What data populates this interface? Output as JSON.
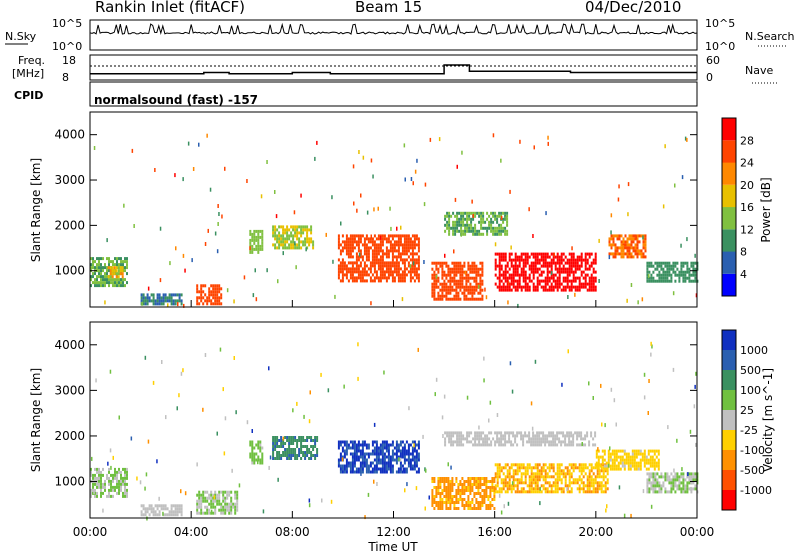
{
  "header": {
    "station": "Rankin Inlet (fitACF)",
    "beam": "Beam 15",
    "date": "04/Dec/2010"
  },
  "noise_panel": {
    "left_label": "N.Sky",
    "right_label": "N.Search",
    "left_ticks": [
      "10^5",
      "10^0"
    ],
    "right_ticks": [
      "10^5",
      "10^0"
    ]
  },
  "freq_panel": {
    "left_label_line1": "Freq.",
    "left_label_line2": "[MHz]",
    "left_ticks": [
      "18",
      "8"
    ],
    "right_label": "Nave",
    "right_ticks": [
      "60",
      "0"
    ]
  },
  "cpid_panel": {
    "label": "CPID",
    "text": "normalsound (fast) -157"
  },
  "x_axis": {
    "label": "Time UT",
    "ticks": [
      "00:00",
      "04:00",
      "08:00",
      "12:00",
      "16:00",
      "20:00",
      "00:00"
    ]
  },
  "y_axis": {
    "label": "Slant Range [km]",
    "ticks": [
      "1000",
      "2000",
      "3000",
      "4000"
    ]
  },
  "power_scale": {
    "label": "Power [dB]",
    "ticks": [
      "4",
      "8",
      "12",
      "16",
      "20",
      "24",
      "28"
    ],
    "colors": [
      "#0000ff",
      "#2a5fb0",
      "#3a9060",
      "#80c040",
      "#e8c000",
      "#ff8800",
      "#ff4400",
      "#ff0000"
    ]
  },
  "velocity_scale": {
    "label": "Velocity [m s^-1]",
    "ticks": [
      "1000",
      "500",
      "100",
      "25",
      "-25",
      "-100",
      "-500",
      "-1000"
    ],
    "colors": [
      "#1030c0",
      "#2a5fb0",
      "#3a9060",
      "#70c040",
      "#c0c0c0",
      "#ffd000",
      "#ff9000",
      "#ff5000",
      "#ff0000"
    ]
  },
  "chart_data": [
    {
      "type": "heatmap",
      "title": "Power",
      "xlabel": "Time UT",
      "ylabel": "Slant Range [km]",
      "xlim": [
        0,
        24
      ],
      "ylim": [
        200,
        4500
      ],
      "colorbar": {
        "label": "Power [dB]",
        "range": [
          0,
          32
        ]
      },
      "regions": [
        {
          "t": [
            0.0,
            1.5
          ],
          "r": [
            700,
            1300
          ],
          "v": 12
        },
        {
          "t": [
            0.7,
            1.3
          ],
          "r": [
            850,
            1100
          ],
          "v": 20
        },
        {
          "t": [
            2.0,
            3.6
          ],
          "r": [
            250,
            500
          ],
          "v": 8
        },
        {
          "t": [
            4.2,
            5.2
          ],
          "r": [
            300,
            700
          ],
          "v": 26
        },
        {
          "t": [
            6.3,
            6.8
          ],
          "r": [
            1400,
            1900
          ],
          "v": 14
        },
        {
          "t": [
            7.2,
            8.8
          ],
          "r": [
            1500,
            2000
          ],
          "v": 16
        },
        {
          "t": [
            9.8,
            13.0
          ],
          "r": [
            800,
            1800
          ],
          "v": 26
        },
        {
          "t": [
            13.5,
            15.5
          ],
          "r": [
            400,
            1200
          ],
          "v": 26
        },
        {
          "t": [
            14.0,
            16.5
          ],
          "r": [
            1800,
            2300
          ],
          "v": 12
        },
        {
          "t": [
            16.0,
            20.0
          ],
          "r": [
            600,
            1400
          ],
          "v": 30
        },
        {
          "t": [
            20.5,
            22.0
          ],
          "r": [
            1300,
            1800
          ],
          "v": 24
        },
        {
          "t": [
            22.0,
            24.0
          ],
          "r": [
            800,
            1200
          ],
          "v": 10
        }
      ]
    },
    {
      "type": "heatmap",
      "title": "Velocity",
      "xlabel": "Time UT",
      "ylabel": "Slant Range [km]",
      "xlim": [
        0,
        24
      ],
      "ylim": [
        200,
        4500
      ],
      "colorbar": {
        "label": "Velocity [m s^-1]",
        "range": [
          -1000,
          1000
        ]
      },
      "regions": [
        {
          "t": [
            0.0,
            1.5
          ],
          "r": [
            700,
            1300
          ],
          "v": 100
        },
        {
          "t": [
            2.0,
            3.6
          ],
          "r": [
            250,
            500
          ],
          "v": 0
        },
        {
          "t": [
            4.2,
            5.8
          ],
          "r": [
            300,
            800
          ],
          "v": 100
        },
        {
          "t": [
            6.3,
            6.8
          ],
          "r": [
            1400,
            1900
          ],
          "v": 200
        },
        {
          "t": [
            7.2,
            9.0
          ],
          "r": [
            1500,
            2000
          ],
          "v": 500
        },
        {
          "t": [
            9.8,
            13.0
          ],
          "r": [
            1200,
            1900
          ],
          "v": 800
        },
        {
          "t": [
            13.5,
            16.0
          ],
          "r": [
            400,
            1100
          ],
          "v": -400
        },
        {
          "t": [
            14.0,
            20.0
          ],
          "r": [
            1800,
            2100
          ],
          "v": 0
        },
        {
          "t": [
            16.0,
            20.5
          ],
          "r": [
            800,
            1400
          ],
          "v": -300
        },
        {
          "t": [
            20.0,
            22.5
          ],
          "r": [
            1300,
            1700
          ],
          "v": -200
        },
        {
          "t": [
            22.0,
            24.0
          ],
          "r": [
            800,
            1200
          ],
          "v": 100
        }
      ]
    }
  ]
}
